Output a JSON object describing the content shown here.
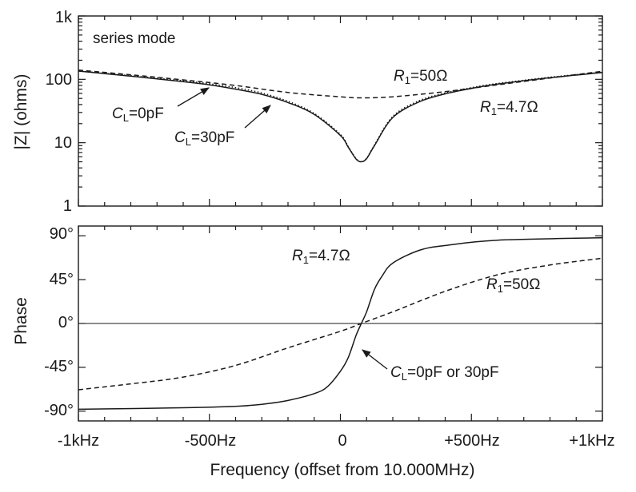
{
  "figure": {
    "xlabel": "Frequency (offset from 10.000MHz)"
  },
  "chart_data": [
    {
      "type": "line",
      "panel": "magnitude",
      "ylabel": "|Z| (ohms)",
      "yscale": "log",
      "ylim": [
        1,
        1000
      ],
      "xlim": [
        -1000,
        1000
      ],
      "x_ticks": [
        -1000,
        -500,
        0,
        500,
        1000
      ],
      "x_tick_labels": [
        "-1kHz",
        "-500Hz",
        "0",
        "+500Hz",
        "+1kHz"
      ],
      "y_ticks": [
        1,
        10,
        100,
        1000
      ],
      "y_tick_labels": [
        "1",
        "10",
        "100",
        "1k"
      ],
      "corner_label": "series mode",
      "series": [
        {
          "name": "R1=50Ω",
          "style": "dashed",
          "x": [
            -1000,
            -800,
            -600,
            -400,
            -200,
            0,
            80,
            200,
            400,
            600,
            800,
            1000
          ],
          "y": [
            140,
            118,
            98,
            80,
            62,
            53,
            51,
            53,
            64,
            82,
            105,
            134
          ]
        },
        {
          "name": "R1=4.7Ω, CL=0pF",
          "style": "solid",
          "x": [
            -1000,
            -800,
            -600,
            -500,
            -400,
            -300,
            -200,
            -100,
            0,
            30,
            60,
            80,
            100,
            130,
            200,
            300,
            400,
            500,
            600,
            800,
            1000
          ],
          "y": [
            135,
            112,
            92,
            82,
            70,
            58,
            43,
            28,
            13,
            8.5,
            5.5,
            5,
            5.6,
            9,
            25,
            44,
            59,
            72,
            84,
            106,
            128
          ]
        },
        {
          "name": "R1=4.7Ω, CL=30pF",
          "style": "dotted",
          "x": [
            -1000,
            -800,
            -600,
            -500,
            -400,
            -300,
            -200,
            -100,
            0,
            30,
            60,
            80,
            100,
            130,
            200,
            300,
            400,
            500,
            600,
            800,
            1000
          ],
          "y": [
            136,
            114,
            95,
            85,
            74,
            61,
            45,
            29,
            13.5,
            8.7,
            5.6,
            5,
            5.7,
            9.2,
            26,
            46,
            61,
            74,
            86,
            108,
            130
          ]
        }
      ],
      "annotations": [
        {
          "base": "R",
          "sub": "1",
          "rest": "=50Ω"
        },
        {
          "base": "R",
          "sub": "1",
          "rest": "=4.7Ω"
        },
        {
          "base": "C",
          "sub": "L",
          "rest": "=0pF"
        },
        {
          "base": "C",
          "sub": "L",
          "rest": "=30pF"
        }
      ]
    },
    {
      "type": "line",
      "panel": "phase",
      "ylabel": "Phase",
      "ylim": [
        -100,
        100
      ],
      "xlim": [
        -1000,
        1000
      ],
      "x_ticks": [
        -1000,
        -500,
        0,
        500,
        1000
      ],
      "x_tick_labels": [
        "-1kHz",
        "-500Hz",
        "0",
        "+500Hz",
        "+1kHz"
      ],
      "y_ticks": [
        90,
        45,
        0,
        -45,
        -90
      ],
      "y_tick_labels": [
        "90°",
        "45°",
        "0°",
        "-45°",
        "-90°"
      ],
      "series": [
        {
          "name": "R1=4.7Ω",
          "style": "solid",
          "x": [
            -1000,
            -600,
            -400,
            -300,
            -200,
            -100,
            -50,
            0,
            30,
            60,
            80,
            100,
            130,
            160,
            200,
            300,
            400,
            600,
            1000
          ],
          "y": [
            -88,
            -86.5,
            -85,
            -83,
            -79,
            -72,
            -65,
            -49,
            -35,
            -12,
            0,
            12,
            35,
            49,
            62,
            75,
            80,
            85.5,
            88
          ]
        },
        {
          "name": "R1=50Ω",
          "style": "dashed",
          "x": [
            -1000,
            -800,
            -600,
            -400,
            -200,
            0,
            80,
            200,
            400,
            600,
            800,
            1000
          ],
          "y": [
            -68,
            -62,
            -55,
            -43,
            -25,
            -8,
            0,
            12,
            33,
            50,
            60,
            67
          ]
        }
      ],
      "annotations": [
        {
          "base": "R",
          "sub": "1",
          "rest": "=4.7Ω"
        },
        {
          "base": "R",
          "sub": "1",
          "rest": "=50Ω"
        },
        {
          "base": "C",
          "sub": "L",
          "rest": "=0pF or 30pF"
        }
      ]
    }
  ]
}
